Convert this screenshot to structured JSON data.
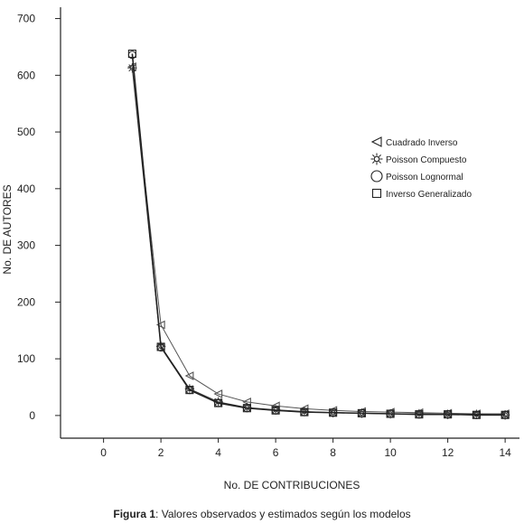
{
  "caption": {
    "figure_label": "Figura 1",
    "text": ": Valores observados y estimados según los modelos"
  },
  "chart_data": {
    "type": "line",
    "xlabel": "No. DE CONTRIBUCIONES",
    "ylabel": "No. DE AUTORES",
    "xlim": [
      -1.5,
      14.5
    ],
    "ylim": [
      -40,
      720
    ],
    "xticks": [
      0,
      2,
      4,
      6,
      8,
      10,
      12,
      14
    ],
    "yticks": [
      0,
      100,
      200,
      300,
      400,
      500,
      600,
      700
    ],
    "grid": false,
    "legend_position": "right",
    "x": [
      1,
      2,
      3,
      4,
      5,
      6,
      7,
      8,
      9,
      10,
      11,
      12,
      13,
      14
    ],
    "series": [
      {
        "name": "Cuadrado Inverso",
        "marker": "triangle-left",
        "color": "#555555",
        "values": [
          615,
          160,
          70,
          38,
          24,
          17,
          12,
          9,
          7,
          6,
          5,
          4,
          3,
          3
        ]
      },
      {
        "name": "Poisson Compuesto",
        "marker": "sun",
        "color": "#333333",
        "values": [
          613,
          122,
          47,
          24,
          14,
          10,
          7,
          5,
          4,
          3,
          3,
          2,
          2,
          1
        ]
      },
      {
        "name": "Poisson Lognormal",
        "marker": "circle",
        "color": "#333333",
        "values": [
          636,
          120,
          45,
          22,
          13,
          9,
          6,
          5,
          4,
          3,
          2,
          2,
          1,
          1
        ]
      },
      {
        "name": "Inverso Generalizado",
        "marker": "square",
        "color": "#222222",
        "values": [
          638,
          121,
          45,
          22,
          13,
          9,
          6,
          5,
          4,
          3,
          2,
          2,
          1,
          1
        ]
      }
    ]
  }
}
